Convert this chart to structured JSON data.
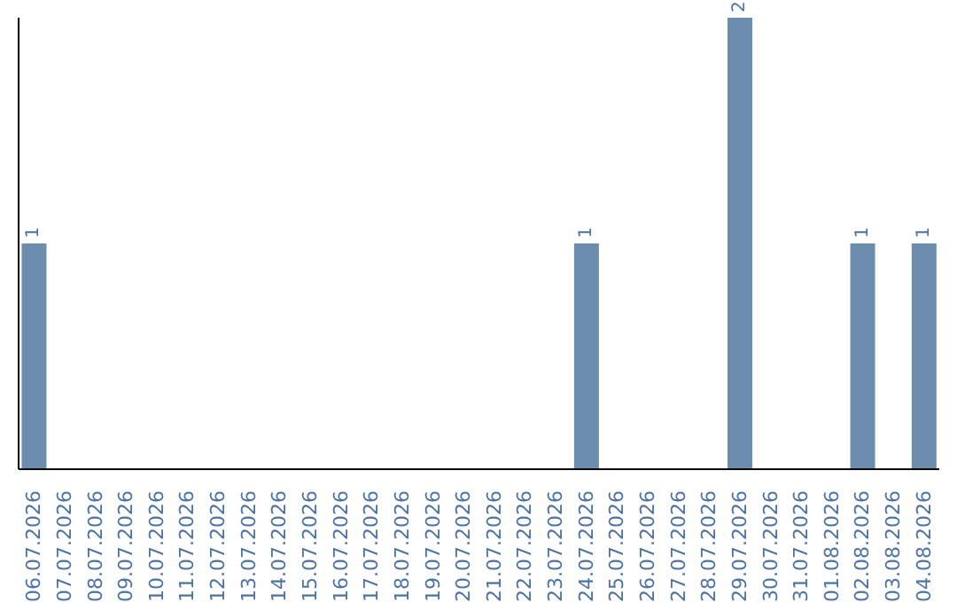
{
  "chart_data": {
    "type": "bar",
    "categories": [
      "06.07.2026",
      "07.07.2026",
      "08.07.2026",
      "09.07.2026",
      "10.07.2026",
      "11.07.2026",
      "12.07.2026",
      "13.07.2026",
      "14.07.2026",
      "15.07.2026",
      "16.07.2026",
      "17.07.2026",
      "18.07.2026",
      "19.07.2026",
      "20.07.2026",
      "21.07.2026",
      "22.07.2026",
      "23.07.2026",
      "24.07.2026",
      "25.07.2026",
      "26.07.2026",
      "27.07.2026",
      "28.07.2026",
      "29.07.2026",
      "30.07.2026",
      "31.07.2026",
      "01.08.2026",
      "02.08.2026",
      "03.08.2026",
      "04.08.2026"
    ],
    "values": [
      1,
      0,
      0,
      0,
      0,
      0,
      0,
      0,
      0,
      0,
      0,
      0,
      0,
      0,
      0,
      0,
      0,
      0,
      1,
      0,
      0,
      0,
      0,
      2,
      0,
      0,
      0,
      1,
      0,
      1
    ],
    "value_labels": [
      "1",
      null,
      null,
      null,
      null,
      null,
      null,
      null,
      null,
      null,
      null,
      null,
      null,
      null,
      null,
      null,
      null,
      null,
      "1",
      null,
      null,
      null,
      null,
      "2",
      null,
      null,
      null,
      "1",
      null,
      "1"
    ],
    "color": "#6d8daf",
    "grid": false,
    "legend": false
  }
}
